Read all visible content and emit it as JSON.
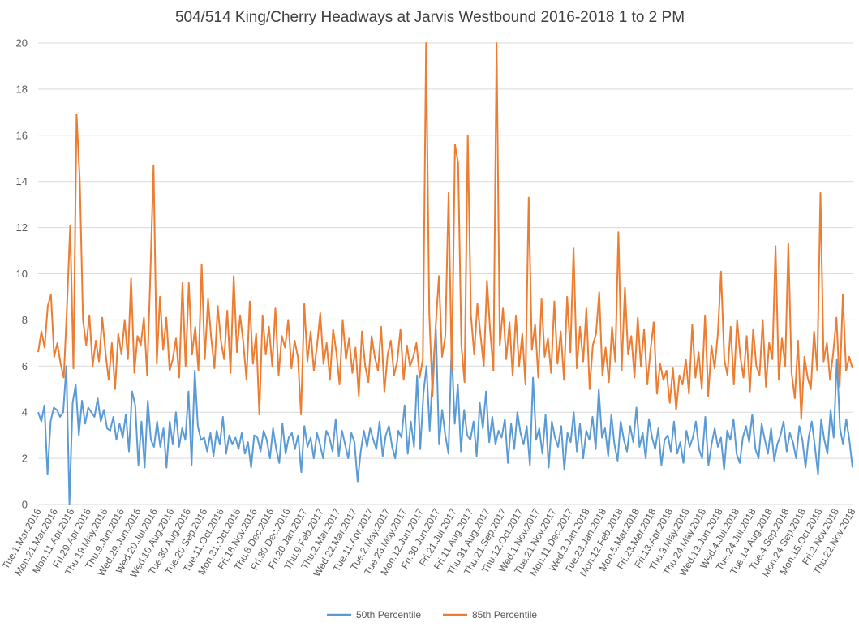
{
  "chart_data": {
    "type": "line",
    "title": "504/514 King/Cherry Headways at Jarvis Westbound 2016-2018 1 to 2 PM",
    "xlabel": "",
    "ylabel": "",
    "ylim": [
      0,
      20
    ],
    "yticks": [
      "0",
      "2",
      "4",
      "6",
      "8",
      "10",
      "12",
      "14",
      "16",
      "18",
      "20"
    ],
    "grid": "horizontal",
    "legend": "bottom",
    "x_tick_labels": [
      "Tue.1.Mar.2016",
      "Mon.21.Mar.2016",
      "Mon.11.Apr.2016",
      "Fri.29.Apr.2016",
      "Thu.19.May.2016",
      "Thu.9.Jun.2016",
      "Wed.29.Jun.2016",
      "Wed.20.Jul.2016",
      "Wed.10.Aug.2016",
      "Tue.30.Aug.2016",
      "Tue.20.Sep.2016",
      "Tue.11.Oct.2016",
      "Mon.31.Oct.2016",
      "Fri.18.Nov.2016",
      "Thu.8.Dec.2016",
      "Fri.30.Dec.2016",
      "Fri.20.Jan.2017",
      "Thu.9.Feb.2017",
      "Thu.2.Mar.2017",
      "Wed.22.Mar.2017",
      "Tue.11.Apr.2017",
      "Tue.2.May.2017",
      "Tue.23.May.2017",
      "Mon.12.Jun.2017",
      "Fri.30.Jun.2017",
      "Fri.21.Jul.2017",
      "Fri.11.Aug.2017",
      "Thu.31.Aug.2017",
      "Thu.21.Sep.2017",
      "Thu.12.Oct.2017",
      "Wed.1.Nov.2017",
      "Tue.21.Nov.2017",
      "Mon.11.Dec.2017",
      "Wed.3.Jan.2018",
      "Tue.23.Jan.2018",
      "Mon.12.Feb.2018",
      "Mon.5.Mar.2018",
      "Fri.23.Mar.2018",
      "Fri.13.Apr.2018",
      "Thu.3.May.2018",
      "Thu.24.May.2018",
      "Wed.13.Jun.2018",
      "Wed.4.Jul.2018",
      "Tue.24.Jul.2018",
      "Tue.14.Aug.2018",
      "Tue.4.Sep.2018",
      "Mon.24.Sep.2018",
      "Mon.15.Oct.2018",
      "Fri.2.Nov.2018",
      "Thu.22.Nov.2018"
    ],
    "series": [
      {
        "name": "50th Percentile",
        "color": "#5b9bd5",
        "values": [
          4.0,
          3.6,
          4.3,
          1.3,
          3.6,
          4.2,
          4.1,
          3.8,
          4.0,
          6.0,
          0.0,
          4.4,
          5.2,
          3.0,
          4.5,
          3.5,
          4.2,
          4.0,
          3.8,
          4.6,
          3.6,
          4.1,
          3.3,
          3.2,
          3.8,
          2.8,
          3.5,
          2.9,
          3.9,
          2.3,
          4.9,
          4.3,
          1.7,
          3.6,
          1.6,
          4.5,
          2.8,
          2.5,
          3.6,
          2.5,
          3.3,
          1.6,
          3.6,
          2.6,
          4.0,
          2.5,
          3.3,
          2.8,
          4.9,
          1.7,
          5.8,
          3.4,
          2.8,
          2.9,
          2.3,
          3.1,
          2.1,
          3.2,
          2.6,
          3.8,
          2.2,
          3.0,
          2.6,
          2.9,
          2.4,
          3.1,
          2.2,
          2.7,
          1.6,
          3.0,
          2.9,
          2.3,
          3.2,
          2.8,
          2.0,
          3.3,
          2.4,
          1.8,
          3.5,
          2.2,
          2.9,
          3.1,
          2.4,
          3.0,
          1.4,
          3.4,
          2.5,
          2.9,
          2.0,
          3.1,
          2.6,
          2.0,
          3.2,
          2.9,
          2.3,
          3.7,
          2.1,
          3.2,
          2.6,
          2.0,
          3.1,
          2.7,
          1.0,
          2.3,
          3.2,
          2.5,
          3.3,
          2.8,
          2.4,
          3.6,
          2.1,
          3.0,
          3.4,
          2.5,
          2.0,
          3.2,
          2.9,
          4.3,
          2.2,
          3.6,
          2.5,
          5.6,
          2.4,
          4.8,
          6.0,
          3.2,
          5.8,
          7.6,
          2.6,
          4.1,
          3.0,
          2.2,
          6.8,
          3.5,
          5.2,
          2.3,
          4.1,
          3.0,
          2.8,
          3.6,
          2.1,
          4.4,
          3.3,
          4.9,
          2.7,
          3.8,
          2.6,
          3.2,
          2.9,
          3.7,
          1.8,
          3.5,
          2.4,
          4.0,
          3.1,
          2.6,
          3.4,
          1.7,
          5.5,
          2.8,
          3.3,
          2.2,
          3.9,
          1.6,
          3.6,
          2.9,
          2.5,
          3.4,
          1.5,
          3.1,
          2.7,
          4.0,
          2.3,
          3.5,
          2.0,
          3.2,
          2.8,
          3.8,
          2.4,
          5.0,
          2.9,
          3.3,
          2.1,
          3.9,
          2.6,
          1.9,
          3.6,
          2.8,
          2.3,
          3.4,
          2.7,
          4.2,
          2.5,
          3.1,
          2.0,
          3.7,
          2.9,
          2.4,
          3.3,
          1.7,
          2.8,
          3.0,
          2.3,
          3.6,
          2.2,
          2.7,
          1.8,
          3.2,
          2.5,
          2.9,
          3.6,
          2.4,
          2.0,
          3.8,
          1.7,
          2.6,
          3.3,
          2.5,
          2.9,
          1.5,
          3.2,
          2.8,
          3.7,
          2.2,
          1.8,
          2.9,
          3.4,
          2.7,
          3.9,
          2.4,
          2.0,
          3.5,
          2.8,
          2.2,
          3.3,
          1.9,
          2.6,
          3.0,
          3.6,
          2.3,
          3.1,
          2.7,
          2.0,
          3.4,
          2.8,
          1.6,
          2.9,
          3.6,
          2.5,
          1.3,
          3.7,
          2.8,
          2.2,
          4.1,
          2.9,
          6.3,
          3.3,
          2.6,
          3.7,
          2.8,
          1.6
        ]
      },
      {
        "name": "85th Percentile",
        "color": "#ed7d31",
        "values": [
          6.6,
          7.5,
          6.8,
          8.6,
          9.1,
          6.4,
          7.0,
          6.1,
          5.5,
          8.6,
          12.1,
          5.9,
          16.9,
          14.0,
          8.0,
          6.9,
          8.2,
          6.0,
          7.1,
          6.2,
          8.1,
          6.6,
          5.4,
          7.0,
          5.0,
          7.4,
          6.5,
          8.0,
          6.3,
          9.8,
          5.7,
          7.3,
          6.9,
          8.1,
          5.6,
          9.9,
          14.7,
          6.1,
          9.0,
          6.7,
          8.1,
          5.8,
          6.3,
          7.2,
          5.5,
          9.6,
          6.0,
          9.6,
          6.5,
          7.7,
          5.8,
          10.4,
          6.3,
          8.9,
          7.2,
          5.9,
          8.6,
          7.1,
          6.3,
          8.4,
          5.7,
          9.9,
          6.6,
          8.2,
          7.0,
          5.4,
          8.8,
          6.1,
          7.4,
          3.9,
          8.2,
          6.5,
          7.7,
          6.0,
          8.5,
          5.6,
          7.3,
          6.8,
          8.0,
          5.9,
          7.1,
          6.4,
          3.9,
          8.7,
          6.2,
          7.5,
          5.8,
          6.9,
          8.3,
          6.1,
          7.0,
          5.4,
          7.6,
          6.6,
          5.2,
          8.0,
          6.3,
          7.2,
          5.7,
          6.8,
          4.7,
          7.5,
          6.0,
          5.3,
          7.3,
          6.4,
          5.8,
          7.7,
          4.9,
          6.5,
          7.1,
          5.6,
          6.2,
          7.6,
          5.4,
          6.9,
          6.0,
          6.4,
          7.0,
          5.5,
          6.3,
          20.0,
          8.3,
          4.7,
          7.7,
          9.9,
          6.4,
          7.3,
          13.5,
          5.8,
          15.6,
          14.8,
          6.9,
          5.3,
          16.0,
          8.2,
          6.5,
          8.7,
          7.3,
          6.0,
          9.7,
          7.5,
          5.8,
          20.0,
          6.9,
          8.5,
          6.3,
          7.9,
          5.6,
          8.2,
          6.0,
          7.4,
          5.2,
          13.3,
          6.7,
          7.8,
          5.5,
          8.9,
          6.4,
          7.2,
          5.7,
          8.8,
          6.1,
          7.5,
          5.4,
          9.0,
          6.6,
          11.1,
          5.9,
          7.7,
          6.2,
          8.5,
          5.0,
          6.9,
          7.4,
          9.2,
          5.6,
          6.8,
          5.3,
          7.7,
          6.2,
          11.8,
          5.8,
          9.4,
          6.5,
          7.3,
          5.5,
          8.1,
          6.0,
          7.6,
          5.2,
          6.7,
          7.9,
          4.8,
          6.1,
          5.4,
          5.8,
          4.4,
          5.9,
          4.1,
          5.6,
          5.2,
          6.3,
          4.8,
          7.8,
          5.5,
          6.6,
          5.0,
          8.2,
          4.7,
          6.9,
          5.9,
          7.4,
          10.1,
          6.3,
          5.6,
          7.7,
          5.2,
          8.0,
          6.4,
          5.5,
          7.3,
          4.9,
          7.6,
          6.0,
          5.6,
          8.0,
          5.1,
          7.0,
          6.3,
          11.2,
          5.4,
          7.2,
          6.0,
          11.3,
          5.7,
          4.6,
          7.1,
          3.7,
          6.4,
          5.5,
          5.0,
          7.5,
          5.8,
          13.5,
          6.2,
          7.0,
          5.4,
          6.6,
          8.1,
          5.1,
          9.1,
          5.8,
          6.4,
          5.9
        ]
      }
    ]
  }
}
